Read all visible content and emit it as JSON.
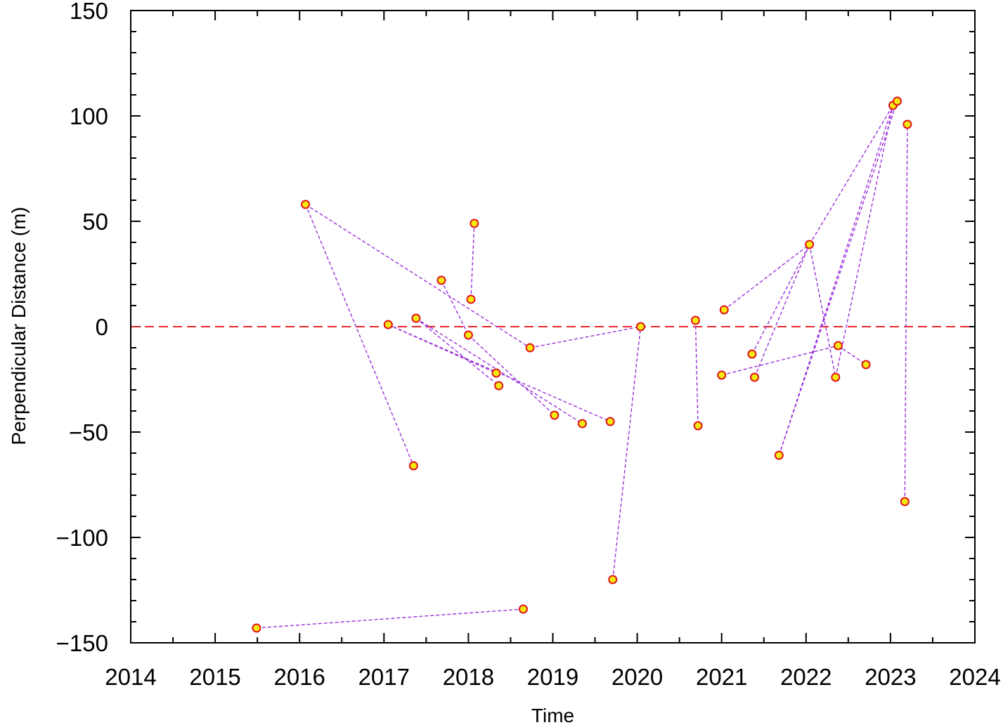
{
  "chart_data": {
    "type": "scatter",
    "xlabel": "Time",
    "ylabel": "Perpendicular Distance (m)",
    "xlim": [
      2014,
      2024
    ],
    "ylim": [
      -150,
      150
    ],
    "x_ticks": [
      "2014",
      "2015",
      "2016",
      "2017",
      "2018",
      "2019",
      "2020",
      "2021",
      "2022",
      "2023",
      "2024"
    ],
    "y_ticks": [
      "150",
      "100",
      "50",
      "0",
      "−50",
      "−100",
      "−150"
    ],
    "reference_line": {
      "y": 0,
      "color": "#e8262a",
      "style": "dashed"
    },
    "colors": {
      "connection": "#9b30d9",
      "point_fill": "#f5e90f",
      "point_stroke": "#e0141c"
    },
    "points": [
      {
        "x": 2015.49,
        "y": -143
      },
      {
        "x": 2016.07,
        "y": 58
      },
      {
        "x": 2017.05,
        "y": 1
      },
      {
        "x": 2017.35,
        "y": -66
      },
      {
        "x": 2017.38,
        "y": 4
      },
      {
        "x": 2017.68,
        "y": 22
      },
      {
        "x": 2018.0,
        "y": -4
      },
      {
        "x": 2018.03,
        "y": 13
      },
      {
        "x": 2018.07,
        "y": 49
      },
      {
        "x": 2018.33,
        "y": -22
      },
      {
        "x": 2018.36,
        "y": -28
      },
      {
        "x": 2018.65,
        "y": -134
      },
      {
        "x": 2018.73,
        "y": -10
      },
      {
        "x": 2019.02,
        "y": -42
      },
      {
        "x": 2019.35,
        "y": -46
      },
      {
        "x": 2019.68,
        "y": -45
      },
      {
        "x": 2019.71,
        "y": -120
      },
      {
        "x": 2020.04,
        "y": 0
      },
      {
        "x": 2020.69,
        "y": 3
      },
      {
        "x": 2020.72,
        "y": -47
      },
      {
        "x": 2021.0,
        "y": -23
      },
      {
        "x": 2021.03,
        "y": 8
      },
      {
        "x": 2021.36,
        "y": -13
      },
      {
        "x": 2021.39,
        "y": -24
      },
      {
        "x": 2021.68,
        "y": -61
      },
      {
        "x": 2022.04,
        "y": 39
      },
      {
        "x": 2022.35,
        "y": -24
      },
      {
        "x": 2022.38,
        "y": -9
      },
      {
        "x": 2022.71,
        "y": -18
      },
      {
        "x": 2023.03,
        "y": 105
      },
      {
        "x": 2023.08,
        "y": 107
      },
      {
        "x": 2023.17,
        "y": -83
      },
      {
        "x": 2023.2,
        "y": 96
      }
    ],
    "connections": [
      [
        2015.49,
        -143,
        2018.65,
        -134
      ],
      [
        2016.07,
        58,
        2017.35,
        -66
      ],
      [
        2016.07,
        58,
        2018.73,
        -10
      ],
      [
        2017.05,
        1,
        2018.33,
        -22
      ],
      [
        2017.05,
        1,
        2019.68,
        -45
      ],
      [
        2017.38,
        4,
        2018.36,
        -28
      ],
      [
        2017.38,
        4,
        2019.35,
        -46
      ],
      [
        2017.68,
        22,
        2018.0,
        -4
      ],
      [
        2018.0,
        -4,
        2019.02,
        -42
      ],
      [
        2018.03,
        13,
        2018.07,
        49
      ],
      [
        2018.73,
        -10,
        2020.04,
        0
      ],
      [
        2019.71,
        -120,
        2020.04,
        0
      ],
      [
        2020.69,
        3,
        2020.72,
        -47
      ],
      [
        2021.0,
        -23,
        2022.38,
        -9
      ],
      [
        2022.38,
        -9,
        2022.71,
        -18
      ],
      [
        2021.03,
        8,
        2022.04,
        39
      ],
      [
        2021.36,
        -13,
        2022.04,
        39
      ],
      [
        2021.39,
        -24,
        2022.04,
        39
      ],
      [
        2022.04,
        39,
        2022.35,
        -24
      ],
      [
        2022.04,
        39,
        2023.03,
        105
      ],
      [
        2021.68,
        -61,
        2023.03,
        105
      ],
      [
        2021.68,
        -61,
        2023.08,
        107
      ],
      [
        2022.35,
        -24,
        2023.03,
        105
      ],
      [
        2023.17,
        -83,
        2023.2,
        96
      ]
    ]
  }
}
